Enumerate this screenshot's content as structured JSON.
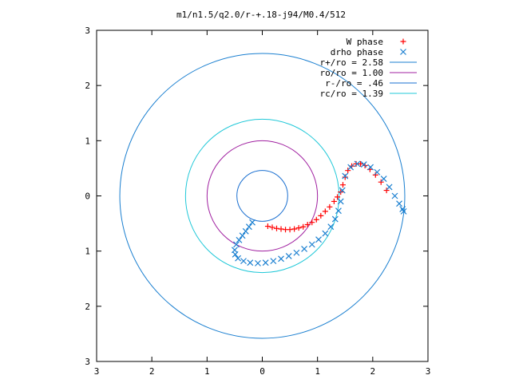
{
  "chart_data": {
    "type": "scatter",
    "title": "m1/n1.5/q2.0/r-+.18-j94/M0.4/512",
    "xlabel": "",
    "ylabel": "",
    "xlim": [
      -3,
      3
    ],
    "ylim": [
      -3,
      3
    ],
    "xticks": [
      -3,
      -2,
      -1,
      0,
      1,
      2,
      3
    ],
    "yticks": [
      -3,
      -2,
      -1,
      0,
      1,
      2,
      3
    ],
    "xtick_labels": [
      "3",
      "2",
      "1",
      "0",
      "1",
      "2",
      "3"
    ],
    "ytick_labels": [
      "3",
      "2",
      "1",
      "0",
      "1",
      "2",
      "3"
    ],
    "grid": false,
    "legend_position": "top-right",
    "circles": [
      {
        "label": "r+/ro = 2.58",
        "radius": 2.58,
        "color": "#1a7fd0"
      },
      {
        "label": "ro/ro = 1.00",
        "radius": 1.0,
        "color": "#a020a0"
      },
      {
        "label": "r-/ro = .46",
        "radius": 0.46,
        "color": "#1a6fd0"
      },
      {
        "label": "rc/ro = 1.39",
        "radius": 1.39,
        "color": "#20c8d8"
      }
    ],
    "series": [
      {
        "name": "W phase",
        "marker": "+",
        "color": "#ff0000",
        "x": [
          0.1,
          0.18,
          0.26,
          0.34,
          0.42,
          0.5,
          0.58,
          0.66,
          0.74,
          0.82,
          0.9,
          0.98,
          1.06,
          1.14,
          1.22,
          1.3,
          1.36,
          1.42,
          1.46,
          1.5,
          1.55,
          1.62,
          1.7,
          1.78,
          1.86,
          1.95,
          2.05,
          2.15,
          2.25
        ],
        "y": [
          -0.55,
          -0.57,
          -0.59,
          -0.6,
          -0.61,
          -0.61,
          -0.6,
          -0.58,
          -0.56,
          -0.52,
          -0.48,
          -0.43,
          -0.36,
          -0.28,
          -0.2,
          -0.1,
          -0.02,
          0.07,
          0.2,
          0.34,
          0.46,
          0.54,
          0.58,
          0.58,
          0.55,
          0.48,
          0.38,
          0.25,
          0.1
        ]
      },
      {
        "name": "drho phase",
        "marker": "x",
        "color": "#1a7fd0",
        "x": [
          -0.18,
          -0.24,
          -0.3,
          -0.36,
          -0.42,
          -0.47,
          -0.5,
          -0.49,
          -0.44,
          -0.34,
          -0.22,
          -0.08,
          0.06,
          0.2,
          0.34,
          0.48,
          0.62,
          0.76,
          0.9,
          1.02,
          1.14,
          1.24,
          1.32,
          1.38,
          1.42,
          1.45,
          1.5,
          1.6,
          1.72,
          1.84,
          1.96,
          2.08,
          2.2,
          2.3,
          2.4,
          2.48,
          2.54,
          2.56
        ],
        "y": [
          -0.48,
          -0.56,
          -0.64,
          -0.72,
          -0.8,
          -0.88,
          -0.98,
          -1.06,
          -1.13,
          -1.18,
          -1.21,
          -1.22,
          -1.21,
          -1.18,
          -1.14,
          -1.09,
          -1.03,
          -0.96,
          -0.88,
          -0.79,
          -0.68,
          -0.56,
          -0.42,
          -0.27,
          -0.1,
          0.1,
          0.36,
          0.52,
          0.58,
          0.57,
          0.52,
          0.43,
          0.31,
          0.16,
          0.0,
          -0.14,
          -0.24,
          -0.28
        ]
      }
    ]
  }
}
